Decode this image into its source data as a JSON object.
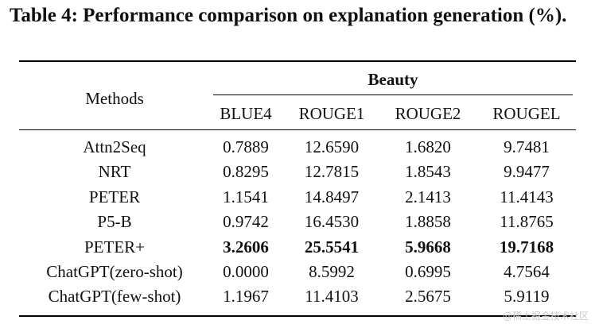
{
  "caption": "Table 4: Performance comparison on explanation generation (%).",
  "table": {
    "row_header": "Methods",
    "group_header": "Beauty",
    "columns": [
      "BLUE4",
      "ROUGE1",
      "ROUGE2",
      "ROUGEL"
    ],
    "rows": [
      {
        "method": "Attn2Seq",
        "values": [
          "0.7889",
          "12.6590",
          "1.6820",
          "9.7481"
        ],
        "bold": false
      },
      {
        "method": "NRT",
        "values": [
          "0.8295",
          "12.7815",
          "1.8543",
          "9.9477"
        ],
        "bold": false
      },
      {
        "method": "PETER",
        "values": [
          "1.1541",
          "14.8497",
          "2.1413",
          "11.4143"
        ],
        "bold": false
      },
      {
        "method": "P5-B",
        "values": [
          "0.9742",
          "16.4530",
          "1.8858",
          "11.8765"
        ],
        "bold": false
      },
      {
        "method": "PETER+",
        "values": [
          "3.2606",
          "25.5541",
          "5.9668",
          "19.7168"
        ],
        "bold": true
      },
      {
        "method": "ChatGPT(zero-shot)",
        "values": [
          "0.0000",
          "8.5992",
          "0.6995",
          "4.7564"
        ],
        "bold": false
      },
      {
        "method": "ChatGPT(few-shot)",
        "values": [
          "1.1967",
          "11.4103",
          "2.5675",
          "5.9119"
        ],
        "bold": false
      }
    ]
  },
  "watermark": "@稀土掘金技术社区"
}
